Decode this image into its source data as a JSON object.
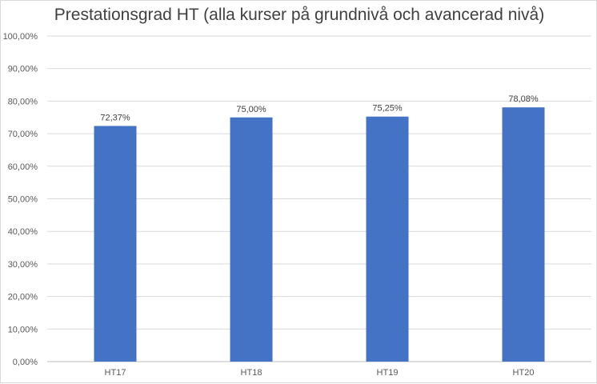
{
  "chart_data": {
    "type": "bar",
    "title": "Prestationsgrad HT (alla kurser på grundnivå och avancerad nivå)",
    "xlabel": "",
    "ylabel": "",
    "categories": [
      "HT17",
      "HT18",
      "HT19",
      "HT20"
    ],
    "values": [
      72.37,
      75.0,
      75.25,
      78.08
    ],
    "value_labels": [
      "72,37%",
      "75,00%",
      "75,25%",
      "78,08%"
    ],
    "ylim": [
      0,
      100
    ],
    "y_ticks": [
      0,
      10,
      20,
      30,
      40,
      50,
      60,
      70,
      80,
      90,
      100
    ],
    "y_tick_labels": [
      "0,00%",
      "10,00%",
      "20,00%",
      "30,00%",
      "40,00%",
      "50,00%",
      "60,00%",
      "70,00%",
      "80,00%",
      "90,00%",
      "100,00%"
    ],
    "grid": true,
    "legend": "none",
    "bar_color": "#4472c4",
    "grid_color": "#d9d9d9"
  }
}
